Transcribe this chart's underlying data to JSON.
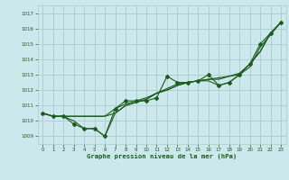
{
  "title": "Graphe pression niveau de la mer (hPa)",
  "bg_color": "#cce8ec",
  "grid_color": "#aacccc",
  "line_color": "#1a5c1a",
  "xlim": [
    -0.5,
    23.5
  ],
  "ylim": [
    1008.5,
    1017.5
  ],
  "yticks": [
    1009,
    1010,
    1011,
    1012,
    1013,
    1014,
    1015,
    1016,
    1017
  ],
  "xticks": [
    0,
    1,
    2,
    3,
    4,
    5,
    6,
    7,
    8,
    9,
    10,
    11,
    12,
    13,
    14,
    15,
    16,
    17,
    18,
    19,
    20,
    21,
    22,
    23
  ],
  "series": [
    [
      1010.5,
      1010.3,
      1010.3,
      1009.8,
      1009.5,
      1009.5,
      1009.0,
      1010.8,
      1011.3,
      1011.3,
      1011.3,
      1011.5,
      1012.9,
      1012.5,
      1012.5,
      1012.6,
      1013.0,
      1012.3,
      1012.5,
      1013.0,
      1013.7,
      1015.0,
      1015.7,
      1016.4
    ],
    [
      1010.5,
      1010.3,
      1010.3,
      1010.3,
      1010.3,
      1010.3,
      1010.3,
      1010.8,
      1011.1,
      1011.3,
      1011.5,
      1011.8,
      1012.1,
      1012.4,
      1012.5,
      1012.6,
      1012.7,
      1012.8,
      1012.9,
      1013.0,
      1013.7,
      1014.5,
      1015.7,
      1016.4
    ],
    [
      1010.5,
      1010.3,
      1010.3,
      1010.3,
      1010.3,
      1010.3,
      1010.3,
      1010.5,
      1011.0,
      1011.2,
      1011.4,
      1011.8,
      1012.0,
      1012.3,
      1012.5,
      1012.6,
      1012.7,
      1012.7,
      1012.9,
      1013.1,
      1013.7,
      1014.5,
      1015.7,
      1016.4
    ],
    [
      1010.5,
      1010.3,
      1010.3,
      1010.0,
      1009.5,
      1009.5,
      1009.0,
      1010.5,
      1011.0,
      1011.2,
      1011.4,
      1011.8,
      1012.0,
      1012.3,
      1012.5,
      1012.6,
      1012.6,
      1012.3,
      1012.5,
      1013.0,
      1013.5,
      1014.8,
      1015.6,
      1016.4
    ]
  ],
  "has_markers": [
    true,
    false,
    false,
    false
  ]
}
